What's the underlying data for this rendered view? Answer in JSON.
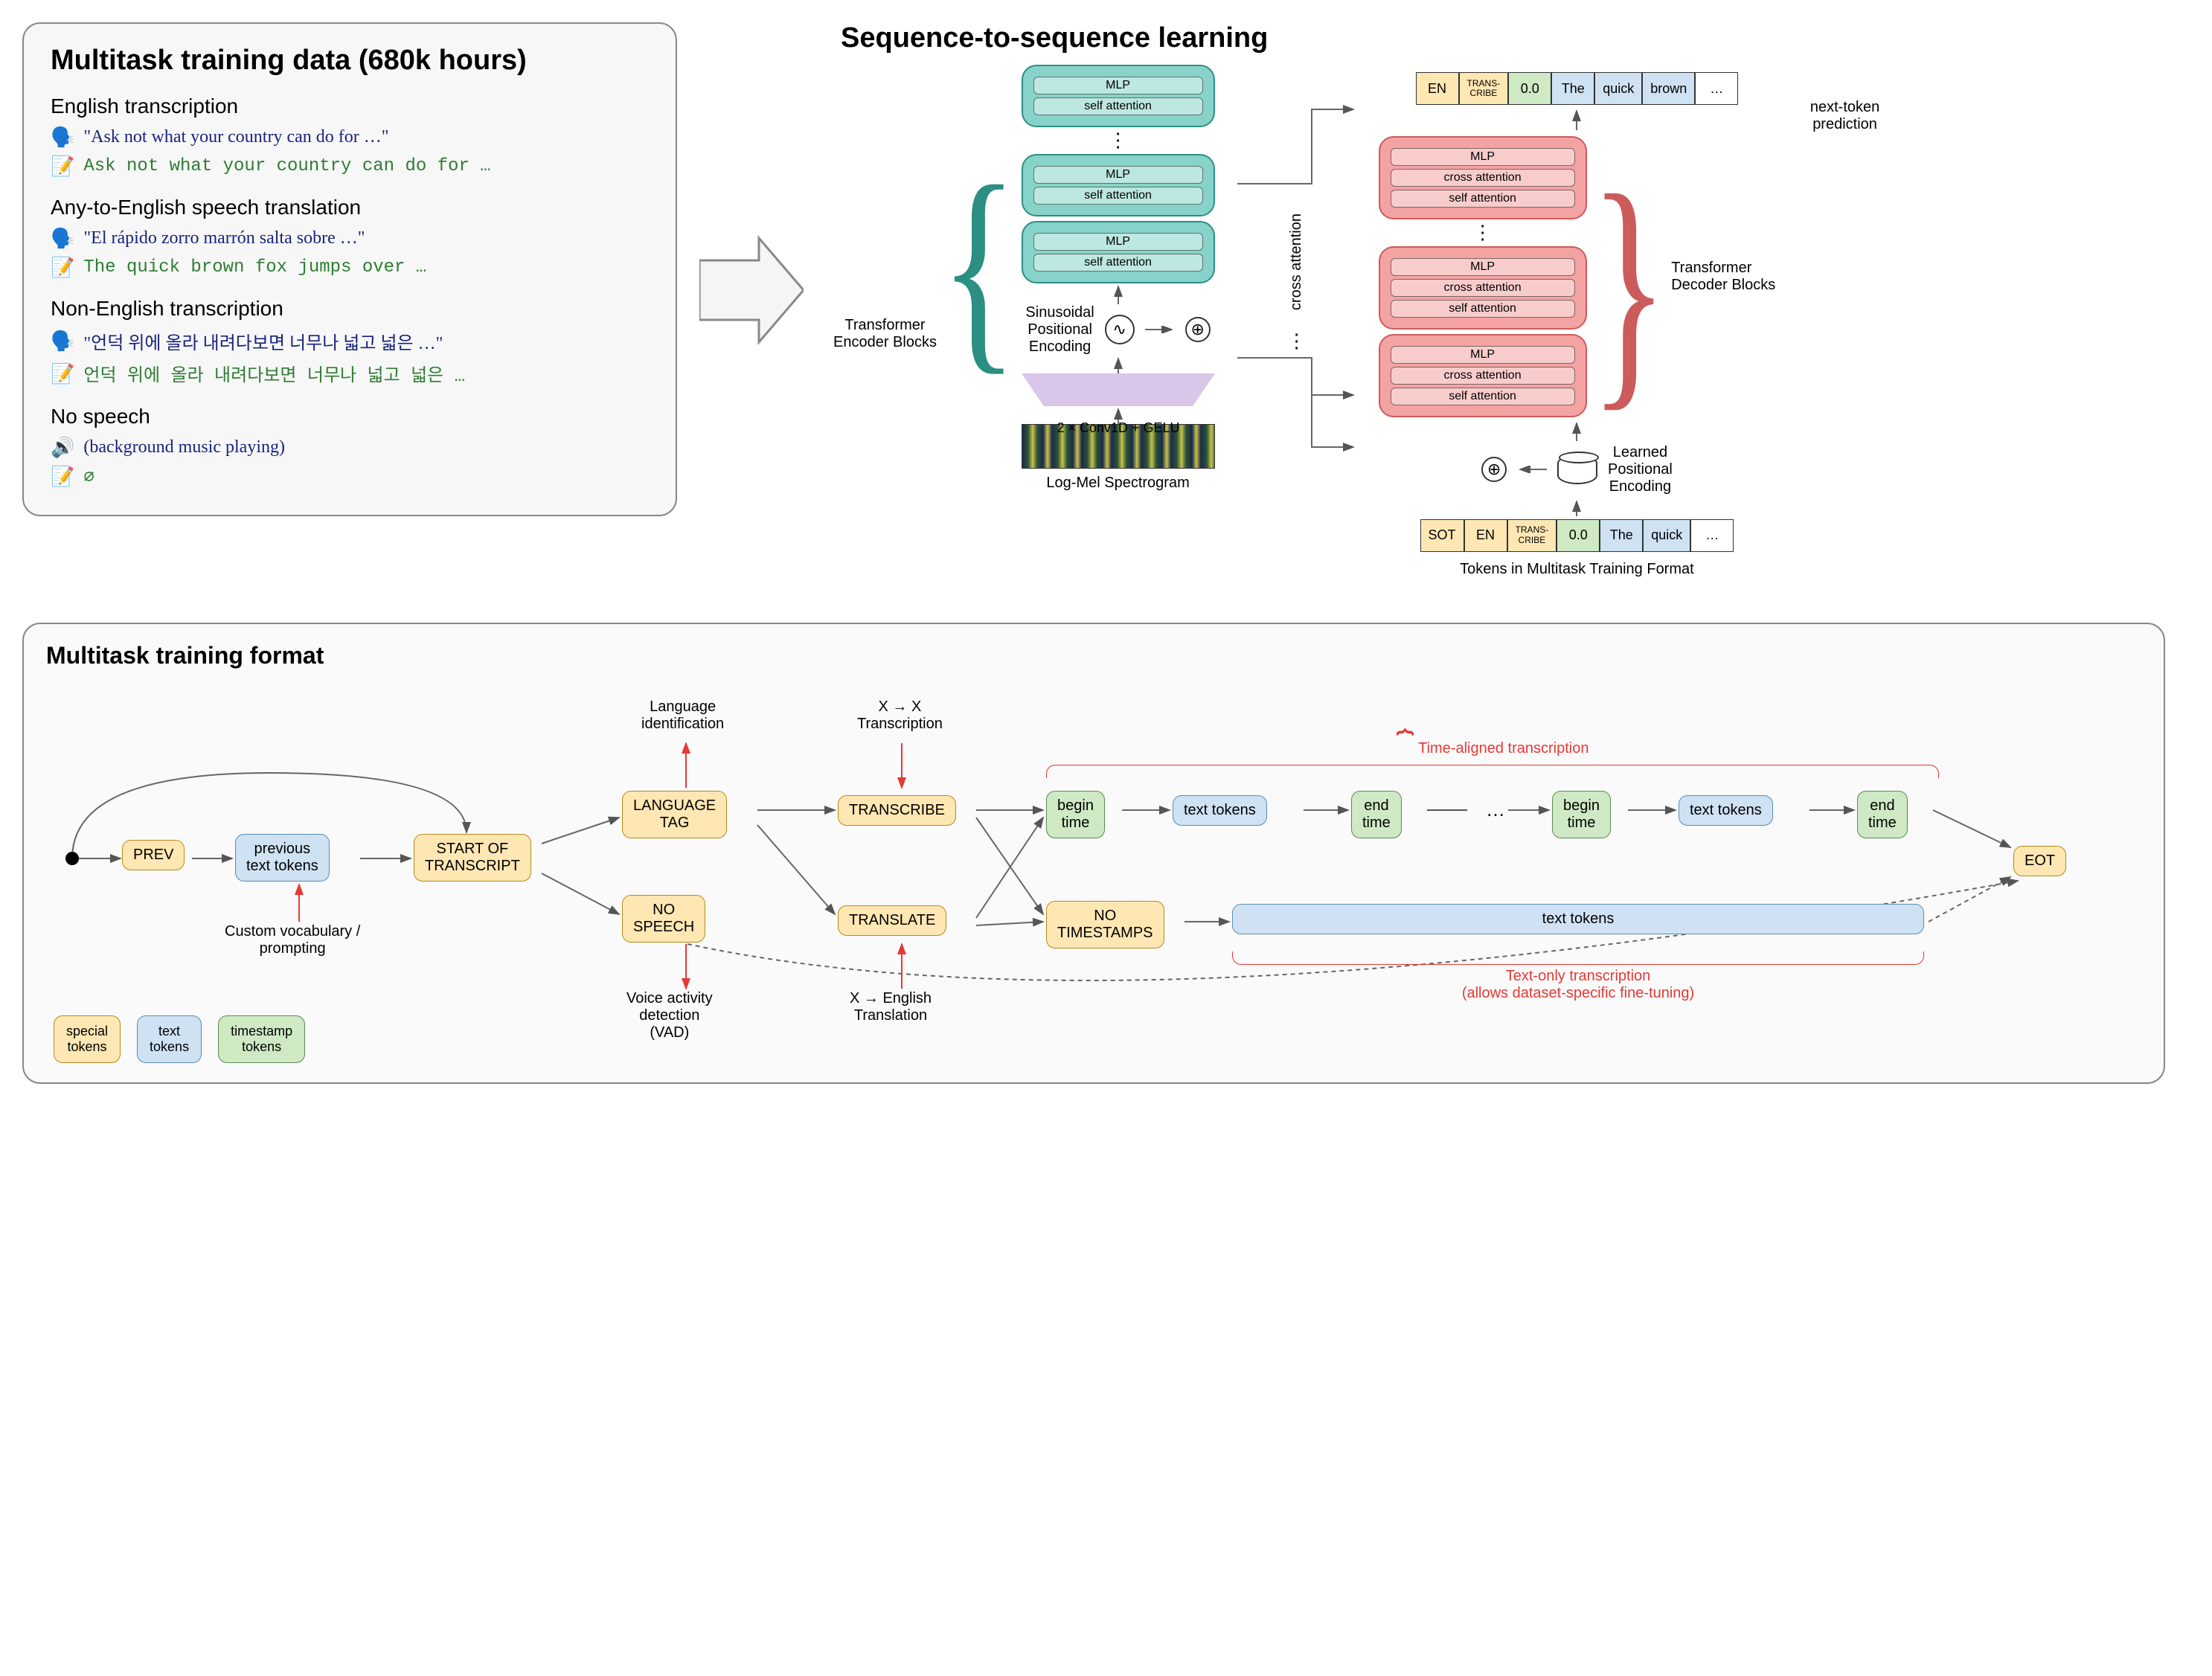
{
  "left": {
    "title": "Multitask training data (680k hours)",
    "sections": [
      {
        "heading": "English transcription",
        "speak": "\"Ask not what your country can do for …\"",
        "write": "Ask not what your country can do for …"
      },
      {
        "heading": "Any-to-English speech translation",
        "speak": "\"El rápido zorro marrón salta sobre …\"",
        "write": "The quick brown fox jumps over …"
      },
      {
        "heading": "Non-English transcription",
        "speak": "\"언덕 위에 올라 내려다보면 너무나 넓고 넓은 …\"",
        "write": "언덕 위에 올라 내려다보면 너무나 넓고 넓은 …"
      },
      {
        "heading": "No speech",
        "speak": "(background music playing)",
        "write": "∅"
      }
    ]
  },
  "seq": {
    "title": "Sequence-to-sequence learning",
    "output_tokens": [
      {
        "t": "EN",
        "c": "c-orange"
      },
      {
        "t": "TRANS-\nCRIBE",
        "c": "c-orange small"
      },
      {
        "t": "0.0",
        "c": "c-green"
      },
      {
        "t": "The",
        "c": "c-blue"
      },
      {
        "t": "quick",
        "c": "c-blue"
      },
      {
        "t": "brown",
        "c": "c-blue"
      },
      {
        "t": "…",
        "c": "c-white"
      }
    ],
    "next_token_lbl": "next-token\nprediction",
    "encoder_lbl": "Transformer\nEncoder Blocks",
    "decoder_lbl": "Transformer\nDecoder Blocks",
    "block_layers": {
      "mlp": "MLP",
      "self": "self attention",
      "cross": "cross attention"
    },
    "sin_lbl": "Sinusoidal\nPositional\nEncoding",
    "cross_lbl": "cross attention",
    "conv_lbl": "2 × Conv1D + GELU",
    "spectro_lbl": "Log-Mel Spectrogram",
    "learned_lbl": "Learned\nPositional\nEncoding",
    "input_tokens": [
      {
        "t": "SOT",
        "c": "c-orange"
      },
      {
        "t": "EN",
        "c": "c-orange"
      },
      {
        "t": "TRANS-\nCRIBE",
        "c": "c-orange small"
      },
      {
        "t": "0.0",
        "c": "c-green"
      },
      {
        "t": "The",
        "c": "c-blue"
      },
      {
        "t": "quick",
        "c": "c-blue"
      },
      {
        "t": "…",
        "c": "c-white"
      }
    ],
    "input_lbl": "Tokens in Multitask Training Format"
  },
  "flow": {
    "title": "Multitask training format",
    "boxes": {
      "prev": "PREV",
      "prev_tokens": "previous\ntext tokens",
      "sot": "START OF\nTRANSCRIPT",
      "lang": "LANGUAGE\nTAG",
      "nospeech": "NO\nSPEECH",
      "transcribe": "TRANSCRIBE",
      "translate": "TRANSLATE",
      "begin1": "begin\ntime",
      "text1": "text tokens",
      "end1": "end\ntime",
      "begin2": "begin\ntime",
      "text2": "text tokens",
      "end2": "end\ntime",
      "nots": "NO\nTIMESTAMPS",
      "text_big": "text tokens",
      "eot": "EOT"
    },
    "annotations": {
      "custom": "Custom vocabulary /\nprompting",
      "langid": "Language\nidentification",
      "vad": "Voice activity\ndetection\n(VAD)",
      "xx": "X → X\nTranscription",
      "xen": "X → English\nTranslation",
      "time_aligned": "Time-aligned transcription",
      "text_only": "Text-only transcription\n(allows dataset-specific fine-tuning)"
    },
    "legend": {
      "special": "special\ntokens",
      "text": "text\ntokens",
      "timestamp": "timestamp\ntokens"
    }
  },
  "colors": {
    "orange": "#ffe7b3",
    "green": "#cfe9c4",
    "blue": "#cfe2f3",
    "enc": "#87d3c9",
    "dec": "#f4a3a3",
    "purple": "#d9c6e8",
    "red": "#e53935",
    "encBorder": "#2b8f82",
    "decBorder": "#cc5b5b"
  }
}
